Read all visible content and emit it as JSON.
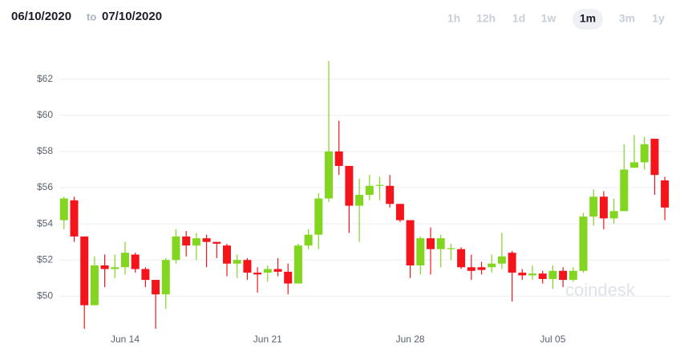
{
  "header": {
    "from": "06/10/2020",
    "to_word": "to",
    "to": "07/10/2020",
    "ranges": [
      "1h",
      "12h",
      "1d",
      "1w",
      "1m",
      "3m",
      "1y"
    ],
    "active_range": 4
  },
  "watermark": "coindesk",
  "chart_data": {
    "type": "candlestick",
    "categories": [
      null,
      null,
      null,
      null,
      null,
      null,
      "Jun 14",
      null,
      null,
      null,
      null,
      null,
      null,
      null,
      null,
      null,
      null,
      null,
      null,
      null,
      "Jun 21",
      null,
      null,
      null,
      null,
      null,
      null,
      null,
      null,
      null,
      null,
      null,
      null,
      null,
      "Jun 28",
      null,
      null,
      null,
      null,
      null,
      null,
      null,
      null,
      null,
      null,
      null,
      null,
      null,
      "Jul 05",
      null,
      null,
      null,
      null,
      null,
      null,
      null,
      null,
      null,
      null,
      null
    ],
    "open": [
      54.2,
      55.3,
      53.3,
      49.5,
      51.7,
      51.5,
      51.6,
      52.3,
      51.5,
      50.9,
      50.1,
      52.0,
      53.3,
      52.8,
      53.2,
      53.0,
      52.8,
      51.8,
      52.0,
      51.3,
      51.3,
      51.5,
      51.35,
      50.7,
      52.8,
      53.4,
      55.4,
      58.0,
      57.2,
      55.0,
      55.6,
      56.1,
      56.1,
      55.1,
      54.2,
      51.7,
      53.2,
      52.6,
      52.6,
      52.6,
      51.6,
      51.6,
      51.6,
      51.8,
      52.4,
      51.3,
      51.15,
      51.25,
      50.95,
      51.4,
      50.9,
      51.4,
      54.4,
      55.5,
      54.3,
      54.7,
      57.1,
      57.4,
      58.7,
      56.4
    ],
    "high": [
      55.5,
      55.5,
      53.3,
      52.2,
      52.3,
      52.3,
      53.0,
      52.4,
      51.6,
      50.9,
      52.1,
      53.7,
      53.6,
      53.5,
      53.4,
      53.0,
      52.9,
      52.3,
      52.1,
      51.6,
      51.7,
      52.1,
      51.8,
      52.9,
      53.7,
      55.7,
      63.0,
      59.7,
      57.2,
      56.5,
      56.7,
      56.6,
      56.7,
      55.1,
      54.2,
      53.3,
      53.8,
      53.4,
      52.9,
      52.7,
      52.3,
      51.9,
      52.3,
      53.5,
      52.5,
      51.5,
      51.7,
      51.4,
      51.7,
      51.6,
      51.6,
      54.6,
      55.9,
      55.8,
      55.4,
      58.4,
      58.9,
      58.8,
      58.7,
      56.6
    ],
    "low": [
      53.7,
      53.0,
      48.2,
      49.5,
      50.5,
      51.0,
      51.2,
      51.3,
      50.5,
      48.2,
      49.3,
      51.8,
      52.2,
      52.0,
      51.6,
      52.1,
      51.1,
      51.0,
      50.9,
      50.2,
      50.8,
      51.1,
      50.1,
      50.7,
      52.6,
      52.6,
      55.2,
      56.7,
      53.5,
      53.0,
      55.3,
      55.3,
      54.9,
      54.1,
      51.0,
      51.2,
      51.2,
      51.6,
      52.0,
      51.5,
      50.9,
      51.2,
      51.3,
      51.5,
      49.7,
      50.9,
      50.9,
      50.7,
      50.4,
      50.5,
      50.8,
      51.3,
      53.9,
      53.7,
      54.0,
      54.7,
      57.1,
      57.0,
      55.6,
      54.2
    ],
    "close": [
      55.4,
      53.3,
      49.5,
      51.7,
      51.5,
      51.6,
      52.4,
      51.5,
      50.9,
      50.1,
      52.0,
      53.3,
      52.8,
      53.2,
      53.0,
      52.9,
      51.8,
      52.0,
      51.3,
      51.2,
      51.5,
      51.35,
      50.7,
      52.8,
      53.4,
      55.4,
      58.0,
      57.2,
      55.0,
      55.6,
      56.1,
      56.15,
      55.1,
      54.2,
      51.7,
      53.2,
      52.6,
      53.2,
      52.65,
      51.6,
      51.4,
      51.45,
      51.8,
      52.2,
      51.3,
      51.15,
      51.25,
      50.95,
      51.4,
      50.9,
      51.4,
      54.4,
      55.5,
      54.3,
      54.7,
      57.0,
      57.4,
      58.4,
      56.7,
      54.9
    ],
    "up_color": "#82d61f",
    "down_color": "#f3141c",
    "ylim": [
      48.2,
      63.8
    ],
    "yticks": [
      {
        "value": 50,
        "label": "$50"
      },
      {
        "value": 52,
        "label": "$52"
      },
      {
        "value": 54,
        "label": "$54"
      },
      {
        "value": 56,
        "label": "$56"
      },
      {
        "value": 58,
        "label": "$58"
      },
      {
        "value": 60,
        "label": "$60"
      },
      {
        "value": 62,
        "label": "$62"
      }
    ],
    "grid": true
  }
}
